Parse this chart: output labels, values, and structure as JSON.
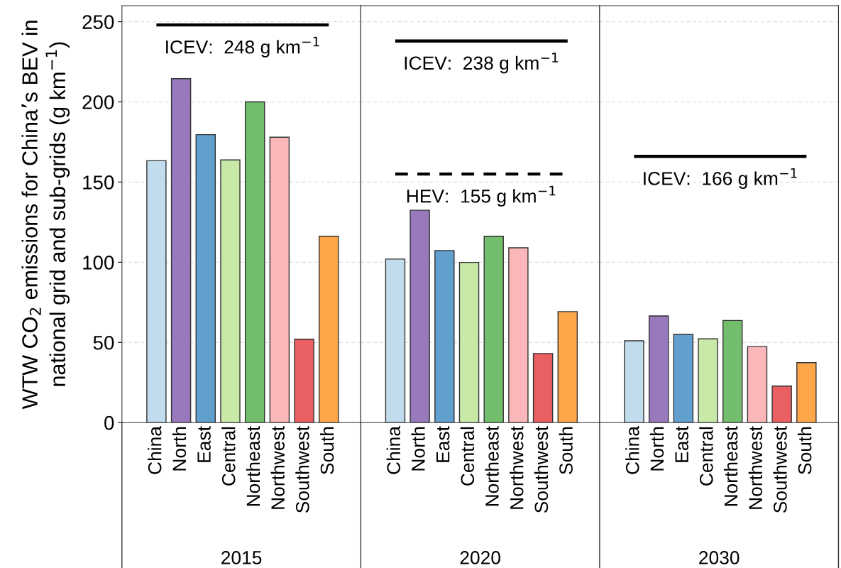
{
  "chart_data": [
    {
      "type": "bar",
      "xlabel": "2015",
      "ylabel": "WTW CO$_{2}$ emissions for China’s BEV in\nnational grid and sub-grids (g km$^{−1}$)",
      "categories": [
        "China",
        "North",
        "East",
        "Central",
        "Northeast",
        "Northwest",
        "Southwest",
        "South"
      ],
      "values": [
        163.3,
        214.5,
        179.6,
        163.8,
        200,
        178,
        52,
        116.2
      ],
      "colors": [
        "#c1dcec",
        "#9879bb",
        "#619fcf",
        "#c9e9a9",
        "#72be6c",
        "#fab6b8",
        "#e95f62",
        "#fea64a"
      ],
      "ylim": [
        0,
        260
      ],
      "yticks": [
        0,
        50,
        100,
        150,
        200,
        250
      ],
      "grid": "y",
      "ref_lines": [
        {
          "axis": "y",
          "value": 248,
          "label": "ICEV:  248 g km$^{−1}$",
          "color": "#000000",
          "line_style": "solid"
        }
      ]
    },
    {
      "type": "bar",
      "xlabel": "2020",
      "categories": [
        "China",
        "North",
        "East",
        "Central",
        "Northeast",
        "Northwest",
        "Southwest",
        "South"
      ],
      "values": [
        102,
        132.4,
        107.3,
        99.9,
        116.2,
        109,
        43.1,
        69.2
      ],
      "colors": [
        "#c1dcec",
        "#9879bb",
        "#619fcf",
        "#c9e9a9",
        "#72be6c",
        "#fab6b8",
        "#e95f62",
        "#fea64a"
      ],
      "ylim": [
        0,
        260
      ],
      "yticks": [
        0,
        50,
        100,
        150,
        200,
        250
      ],
      "grid": "y",
      "tick_labels": "x",
      "ref_lines": [
        {
          "axis": "y",
          "value": 238,
          "label": "ICEV:  238 g km$^{−1}$",
          "color": "#000000",
          "line_style": "solid"
        },
        {
          "axis": "y",
          "value": 155,
          "label": "HEV:  155 g km$^{−1}$",
          "color": "#000000",
          "line_style": "dashed"
        }
      ]
    },
    {
      "type": "bar",
      "xlabel": "2030",
      "categories": [
        "China",
        "North",
        "East",
        "Central",
        "Northeast",
        "Northwest",
        "Southwest",
        "South"
      ],
      "values": [
        51,
        66.5,
        55,
        52.2,
        63.7,
        47.4,
        22.8,
        37.4
      ],
      "colors": [
        "#c1dcec",
        "#9879bb",
        "#619fcf",
        "#c9e9a9",
        "#72be6c",
        "#fab6b8",
        "#e95f62",
        "#fea64a"
      ],
      "ylim": [
        0,
        260
      ],
      "yticks": [
        0,
        50,
        100,
        150,
        200,
        250
      ],
      "grid": "y",
      "tick_labels": "x",
      "ref_lines": [
        {
          "axis": "y",
          "value": 166,
          "label": "ICEV:  166 g km$^{−1}$",
          "color": "#000000",
          "line_style": "solid"
        }
      ]
    }
  ]
}
